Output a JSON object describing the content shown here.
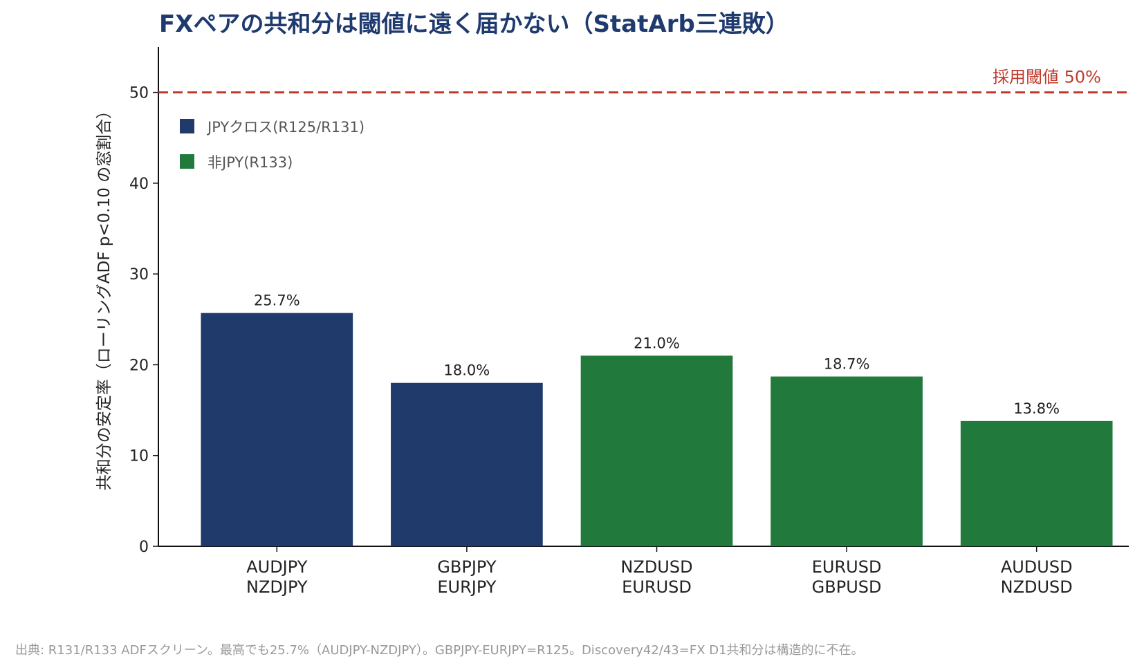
{
  "chart_data": {
    "type": "bar",
    "title": "FXペアの共和分は閾値に遠く届かない（StatArb三連敗）",
    "ylabel": "共和分の安定率（ローリングADF p<0.10 の窓割合）",
    "xlabel": "",
    "ylim": [
      0,
      55
    ],
    "yticks": [
      0,
      10,
      20,
      30,
      40,
      50
    ],
    "grid": false,
    "legend_position": "top-left",
    "categories": [
      [
        "AUDJPY",
        "NZDJPY"
      ],
      [
        "GBPJPY",
        "EURJPY"
      ],
      [
        "NZDUSD",
        "EURUSD"
      ],
      [
        "EURUSD",
        "GBPUSD"
      ],
      [
        "AUDUSD",
        "NZDUSD"
      ]
    ],
    "values": [
      25.7,
      18.0,
      21.0,
      18.7,
      13.8
    ],
    "data_labels": [
      "25.7%",
      "18.0%",
      "21.0%",
      "18.7%",
      "13.8%"
    ],
    "bar_groups": [
      0,
      0,
      1,
      1,
      1
    ],
    "groups": [
      {
        "name": "JPYクロス(R125/R131)",
        "color": "#1f3a6b"
      },
      {
        "name": "非JPY(R133)",
        "color": "#217a3c"
      }
    ],
    "threshold": {
      "value": 50,
      "label": "採用閾値 50%",
      "color": "#c0392b"
    },
    "source_note": "出典: R131/R133 ADFスクリーン。最高でも25.7%（AUDJPY-NZDJPY）。GBPJPY-EURJPY=R125。Discovery42/43=FX D1共和分は構造的に不在。"
  }
}
